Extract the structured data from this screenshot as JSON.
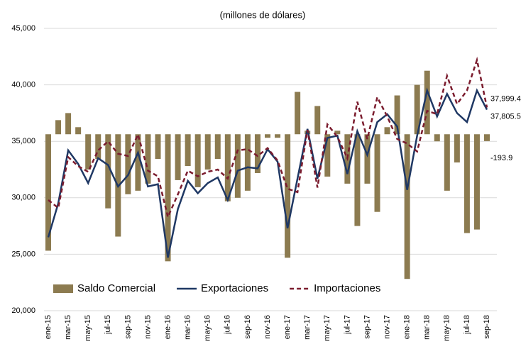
{
  "chart_data": {
    "type": "bar-line",
    "subtitle": "(millones de dólares)",
    "categories": [
      "ene-15",
      null,
      "mar-15",
      null,
      "may-15",
      null,
      "jul-15",
      null,
      "sep-15",
      null,
      "nov-15",
      null,
      "ene-16",
      null,
      "mar-16",
      null,
      "may-16",
      null,
      "jul-16",
      null,
      "sep-16",
      null,
      "nov-16",
      null,
      "ene-17",
      null,
      "mar-17",
      null,
      "may-17",
      null,
      "jul-17",
      null,
      "sep-17",
      null,
      "nov-17",
      null,
      "ene-18",
      null,
      "mar-18",
      null,
      "may-18",
      null,
      "jul-18",
      null,
      "sep-18"
    ],
    "series": [
      {
        "name": "Saldo Comercial",
        "type": "bar",
        "axis": "y2",
        "color": "#8c7b50",
        "values": [
          -3300,
          400,
          600,
          200,
          -1000,
          -700,
          -2100,
          -2900,
          -1700,
          -1600,
          -1400,
          -700,
          -3600,
          -1300,
          -900,
          -1500,
          -1000,
          -700,
          -1900,
          -1800,
          -1600,
          -1100,
          -100,
          -100,
          -3500,
          1200,
          100,
          800,
          -1200,
          100,
          -1400,
          -2600,
          -1400,
          -2200,
          200,
          1100,
          -4100,
          1400,
          1800,
          -200,
          -1600,
          -800,
          -2800,
          -2700,
          -193.9
        ],
        "value_labels": [
          null,
          null,
          null,
          null,
          null,
          null,
          null,
          null,
          null,
          null,
          null,
          null,
          null,
          null,
          null,
          null,
          null,
          null,
          null,
          null,
          null,
          null,
          null,
          null,
          null,
          null,
          null,
          null,
          null,
          null,
          null,
          null,
          null,
          null,
          null,
          null,
          null,
          null,
          null,
          null,
          null,
          null,
          null,
          null,
          "-193.9"
        ]
      },
      {
        "name": "Exportaciones",
        "type": "line",
        "color": "#1f3864",
        "dash": false,
        "values": [
          26500,
          29500,
          34200,
          33000,
          31300,
          33500,
          32900,
          31000,
          32000,
          34000,
          31000,
          31200,
          24700,
          29000,
          31500,
          30400,
          31300,
          31800,
          29800,
          32400,
          32700,
          32600,
          34300,
          33200,
          27300,
          31700,
          36100,
          31700,
          35300,
          35500,
          32100,
          35900,
          33800,
          36700,
          37400,
          36300,
          30700,
          35500,
          39500,
          37200,
          39200,
          37500,
          36700,
          39500,
          37805.5
        ],
        "value_labels": [
          null,
          null,
          null,
          null,
          null,
          null,
          null,
          null,
          null,
          null,
          null,
          null,
          null,
          null,
          null,
          null,
          null,
          null,
          null,
          null,
          null,
          null,
          null,
          null,
          null,
          null,
          null,
          null,
          null,
          null,
          null,
          null,
          null,
          null,
          null,
          null,
          null,
          null,
          null,
          null,
          null,
          null,
          null,
          null,
          "37,805.5"
        ]
      },
      {
        "name": "Importaciones",
        "type": "line",
        "color": "#7b1c2e",
        "dash": true,
        "values": [
          29800,
          29100,
          33600,
          32800,
          32300,
          34200,
          35000,
          33900,
          33700,
          35600,
          32400,
          31900,
          28300,
          30300,
          32400,
          31900,
          32300,
          32500,
          31700,
          34200,
          34300,
          33700,
          34400,
          33300,
          30800,
          30500,
          36000,
          30900,
          36500,
          35400,
          33500,
          38500,
          35200,
          38900,
          37200,
          35200,
          34800,
          34100,
          37700,
          37400,
          40800,
          38300,
          39500,
          42200,
          37999.4
        ],
        "value_labels": [
          null,
          null,
          null,
          null,
          null,
          null,
          null,
          null,
          null,
          null,
          null,
          null,
          null,
          null,
          null,
          null,
          null,
          null,
          null,
          null,
          null,
          null,
          null,
          null,
          null,
          null,
          null,
          null,
          null,
          null,
          null,
          null,
          null,
          null,
          null,
          null,
          null,
          null,
          null,
          null,
          null,
          null,
          null,
          null,
          "37,999.4"
        ]
      }
    ],
    "ylim": [
      20000,
      45000
    ],
    "yticks": [
      {
        "value": 20000,
        "label": "20,000"
      },
      {
        "value": 25000,
        "label": "25,000"
      },
      {
        "value": 30000,
        "label": "30,000"
      },
      {
        "value": 35000,
        "label": "35,000"
      },
      {
        "value": 40000,
        "label": "40,000"
      },
      {
        "value": 45000,
        "label": "45,000"
      }
    ],
    "y2lim": [
      -5000,
      3000
    ],
    "grid": true,
    "legend": "lower-left"
  }
}
